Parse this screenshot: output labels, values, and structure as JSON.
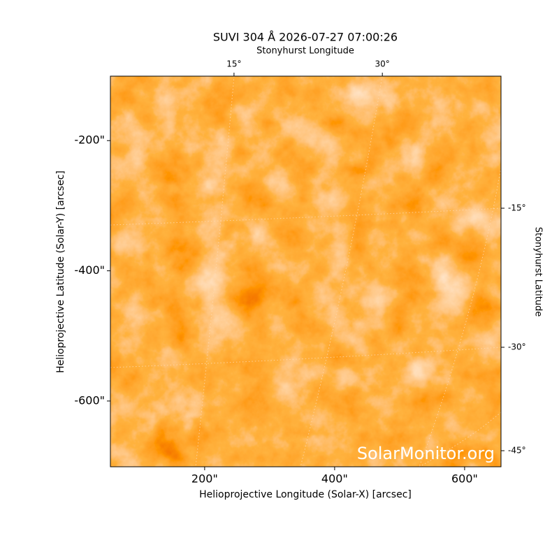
{
  "chart_data": {
    "type": "image",
    "title": "SUVI 304 Å 2026-07-27 07:00:26",
    "x_label": "Helioprojective Longitude (Solar-X) [arcsec]",
    "y_label": "Helioprojective Latitude (Solar-Y) [arcsec]",
    "x2_label": "Stonyhurst Longitude",
    "y2_label": "Stonyhurst Latitude",
    "xlim": [
      55,
      656
    ],
    "ylim": [
      -701,
      -101
    ],
    "xticks": [
      {
        "value": 200,
        "label": "200\""
      },
      {
        "value": 400,
        "label": "400\""
      },
      {
        "value": 600,
        "label": "600\""
      }
    ],
    "yticks": [
      {
        "value": -200,
        "label": "-200\""
      },
      {
        "value": -400,
        "label": "-400\""
      },
      {
        "value": -600,
        "label": "-600\""
      }
    ],
    "x2lim": [
      2.5,
      42
    ],
    "x2ticks": [
      {
        "value": 15,
        "label": "15°"
      },
      {
        "value": 30,
        "label": "30°"
      }
    ],
    "y2ticks": [
      {
        "value": -15,
        "label": "-15°"
      },
      {
        "value": -30,
        "label": "-30°"
      },
      {
        "value": -45,
        "label": "-45°"
      }
    ],
    "watermark": "SolarMonitor.org"
  }
}
